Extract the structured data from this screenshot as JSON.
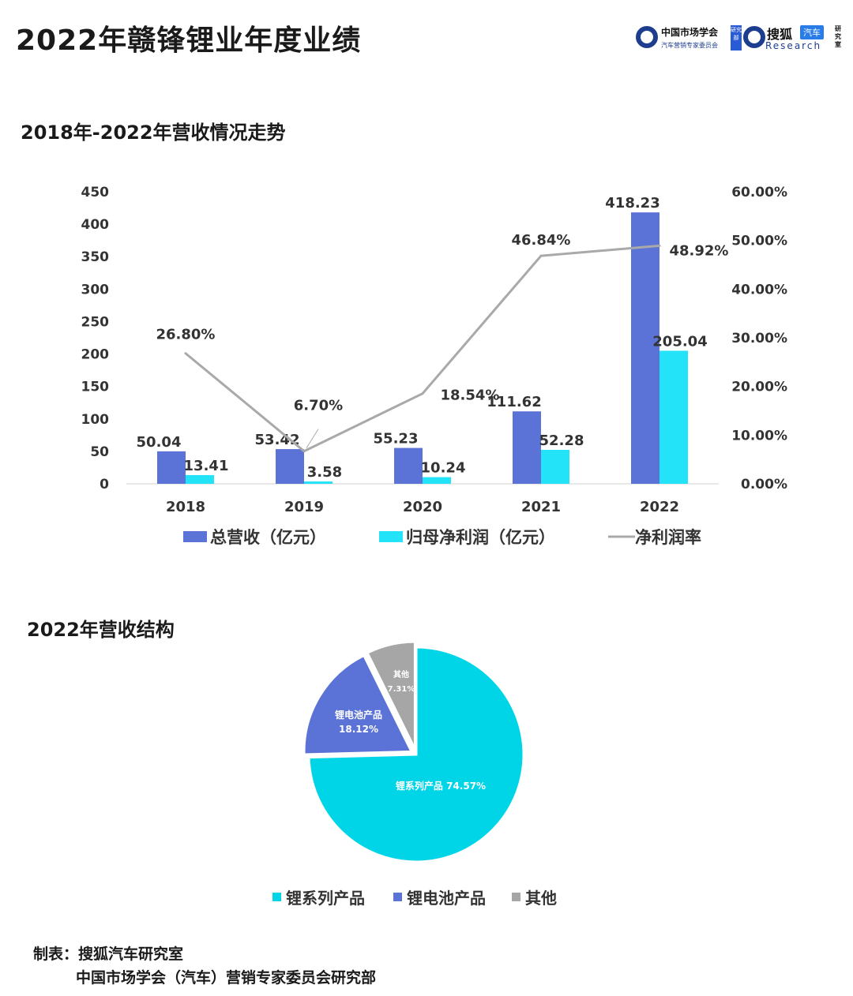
{
  "page": {
    "title": "2022年赣锋锂业年度业绩"
  },
  "logos": {
    "org_name": "中国市场学会",
    "org_sub": "汽车营销专家委员会",
    "dept_label": "研究部",
    "sohu_name": "搜狐",
    "sohu_tag": "汽车",
    "research_text": "Research",
    "lab_label": "研究室"
  },
  "sections": {
    "trend_title": "2018年-2022年营收情况走势",
    "structure_title": "2022年营收结构"
  },
  "footer": {
    "line1": "制表：搜狐汽车研究室",
    "line2": "中国市场学会（汽车）营销专家委员会研究部"
  },
  "chart_data": [
    {
      "type": "bar",
      "categories": [
        "2018",
        "2019",
        "2020",
        "2021",
        "2022"
      ],
      "series": [
        {
          "name": "总营收（亿元）",
          "kind": "bar",
          "axis": "left",
          "color": "#5b72d6",
          "values": [
            50.04,
            53.42,
            55.23,
            111.62,
            418.23
          ],
          "labels": [
            "50.04",
            "53.42",
            "55.23",
            "111.62",
            "418.23"
          ]
        },
        {
          "name": "归母净利润（亿元）",
          "kind": "bar",
          "axis": "left",
          "color": "#22e3f7",
          "values": [
            13.41,
            3.58,
            10.24,
            52.28,
            205.04
          ],
          "labels": [
            "13.41",
            "3.58",
            "10.24",
            "52.28",
            "205.04"
          ]
        },
        {
          "name": "净利润率",
          "kind": "line",
          "axis": "right",
          "color": "#a9a9a9",
          "values": [
            26.8,
            6.7,
            18.54,
            46.84,
            48.92
          ],
          "labels": [
            "26.80%",
            "6.70%",
            "18.54%",
            "46.84%",
            "48.92%"
          ]
        }
      ],
      "y_left": {
        "ylim": [
          0,
          450
        ],
        "ticks": [
          "0",
          "50",
          "100",
          "150",
          "200",
          "250",
          "300",
          "350",
          "400",
          "450"
        ]
      },
      "y_right": {
        "ylim": [
          0,
          60
        ],
        "ticks": [
          "0.00%",
          "10.00%",
          "20.00%",
          "30.00%",
          "40.00%",
          "50.00%",
          "60.00%"
        ]
      },
      "grid": false,
      "legend": "bottom"
    },
    {
      "type": "pie",
      "slices": [
        {
          "name": "锂系列产品",
          "value": 74.57,
          "label": "锂系列产品 74.57%",
          "color": "#00d5e8"
        },
        {
          "name": "锂电池产品",
          "value": 18.12,
          "label": "锂电池产品\n18.12%",
          "color": "#5b72d6"
        },
        {
          "name": "其他",
          "value": 7.31,
          "label": "其他\n7.31%",
          "color": "#a6a6a6"
        }
      ],
      "legend": "bottom"
    }
  ]
}
